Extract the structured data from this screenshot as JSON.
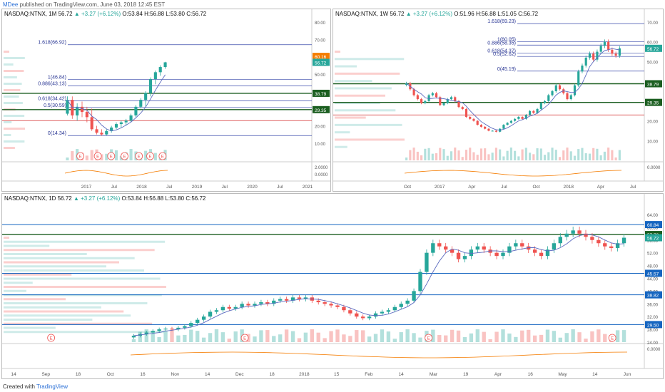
{
  "header": {
    "author": "MDee",
    "published": "published on TradingView.com, June 03, 2018 12:45 EST"
  },
  "footer": {
    "created": "Created with",
    "brand": "TradingView"
  },
  "panels": {
    "monthly": {
      "symbol": "NASDAQ:NTNX, 1M",
      "last": "56.72",
      "chg": "▲ +3.27 (+6.12%)",
      "ohlc": "O:53.84 H:56.88 L:53.80 C:56.72"
    },
    "weekly": {
      "symbol": "NASDAQ:NTNX, 1W",
      "last": "56.72",
      "chg": "▲ +3.27 (+6.12%)",
      "ohlc": "O:51.96 H:56.88 L:51.05 C:56.72"
    },
    "daily": {
      "symbol": "NASDAQ:NTNX, 1D",
      "last": "56.72",
      "chg": "▲ +3.27 (+6.12%)",
      "ohlc": "O:53.84 H:56.88 L:53.80 C:56.72"
    }
  },
  "colors": {
    "up": "#26a69a",
    "down": "#ef5350",
    "fib": "#3949ab",
    "level": "#1b5e20",
    "red_line": "#d32f2f",
    "orange": "#f57c00",
    "blue_line": "#1565c0"
  },
  "chart_data": [
    {
      "type": "candlestick",
      "title": "NASDAQ:NTNX, 1M",
      "ylim": [
        0,
        80
      ],
      "y_ticks": [
        "80.00",
        "70.00",
        "60.00",
        "50.00",
        "40.00",
        "30.00",
        "20.00",
        "10.00"
      ],
      "x_ticks": [
        "2017",
        "Jul",
        "2018",
        "Jul",
        "2019",
        "Jul",
        "2020",
        "Jul",
        "2021"
      ],
      "indicator_ticks": [
        "2.0000",
        "0.0000"
      ],
      "fib_levels": [
        {
          "label": "1.618(66.92)",
          "value": 66.92
        },
        {
          "label": "1(46.84)",
          "value": 46.84
        },
        {
          "label": "0.886(43.13)",
          "value": 43.13
        },
        {
          "label": "0.618(34.42)",
          "value": 34.42
        },
        {
          "label": "0.5(30.59)",
          "value": 30.59
        },
        {
          "label": "0(14.34)",
          "value": 14.34
        }
      ],
      "price_tags": [
        {
          "label": "60.16",
          "value": 60.16,
          "color": "#f57c00"
        },
        {
          "label": "56.72",
          "value": 56.72,
          "color": "#26a69a"
        },
        {
          "label": "38.79",
          "value": 38.79,
          "color": "#1b5e20"
        },
        {
          "label": "29.35",
          "value": 29.35,
          "color": "#1b5e20"
        }
      ],
      "horizontal_levels": [
        38.79,
        29.35,
        23.0
      ],
      "candles": [
        {
          "o": 27,
          "h": 37,
          "l": 26,
          "c": 35
        },
        {
          "o": 35,
          "h": 37,
          "l": 24,
          "c": 26
        },
        {
          "o": 26,
          "h": 33,
          "l": 23,
          "c": 31
        },
        {
          "o": 31,
          "h": 34,
          "l": 25,
          "c": 28
        },
        {
          "o": 28,
          "h": 31,
          "l": 22,
          "c": 25
        },
        {
          "o": 25,
          "h": 30,
          "l": 17,
          "c": 18
        },
        {
          "o": 18,
          "h": 20,
          "l": 15,
          "c": 16
        },
        {
          "o": 16,
          "h": 18,
          "l": 14.3,
          "c": 15
        },
        {
          "o": 15,
          "h": 18,
          "l": 14.5,
          "c": 17
        },
        {
          "o": 17,
          "h": 20,
          "l": 16,
          "c": 19
        },
        {
          "o": 19,
          "h": 22,
          "l": 18,
          "c": 21
        },
        {
          "o": 21,
          "h": 23,
          "l": 19,
          "c": 22
        },
        {
          "o": 22,
          "h": 24,
          "l": 20,
          "c": 23
        },
        {
          "o": 23,
          "h": 27,
          "l": 22,
          "c": 26
        },
        {
          "o": 26,
          "h": 32,
          "l": 25,
          "c": 31
        },
        {
          "o": 31,
          "h": 36,
          "l": 30,
          "c": 35
        },
        {
          "o": 35,
          "h": 40,
          "l": 31,
          "c": 39
        },
        {
          "o": 39,
          "h": 48,
          "l": 37,
          "c": 47
        },
        {
          "o": 47,
          "h": 52,
          "l": 44,
          "c": 51
        },
        {
          "o": 51,
          "h": 55,
          "l": 49,
          "c": 54
        },
        {
          "o": 54,
          "h": 57,
          "l": 53,
          "c": 56.72
        }
      ]
    },
    {
      "type": "candlestick",
      "title": "NASDAQ:NTNX, 1W",
      "ylim": [
        0,
        70
      ],
      "y_ticks": [
        "70.00",
        "60.00",
        "50.00",
        "40.00",
        "30.00",
        "20.00",
        "10.00"
      ],
      "x_ticks": [
        "Oct",
        "2017",
        "Apr",
        "Jul",
        "Oct",
        "2018",
        "Apr",
        "Jul"
      ],
      "indicator_ticks": [
        "0.0000"
      ],
      "fib_levels": [
        {
          "label": "1.618(69.23)",
          "value": 69.23
        },
        {
          "label": "1(60.05)",
          "value": 60.05
        },
        {
          "label": "0.886(58.35)",
          "value": 58.35
        },
        {
          "label": "0.618(54.37)",
          "value": 54.37
        },
        {
          "label": "0.5(52.62)",
          "value": 52.62
        },
        {
          "label": "0(45.19)",
          "value": 45.19
        }
      ],
      "price_tags": [
        {
          "label": "56.72",
          "value": 56.72,
          "color": "#26a69a"
        },
        {
          "label": "38.79",
          "value": 38.79,
          "color": "#1b5e20"
        },
        {
          "label": "29.35",
          "value": 29.35,
          "color": "#1b5e20"
        }
      ],
      "horizontal_levels": [
        38.79,
        29.35,
        23.0
      ],
      "close": [
        39,
        36,
        33,
        31,
        29,
        30,
        33,
        34,
        32,
        28,
        29,
        31,
        32,
        30,
        27,
        26,
        22,
        21,
        20,
        18,
        17,
        16,
        15,
        15,
        14.5,
        16,
        18,
        19,
        20,
        21,
        22,
        21,
        23,
        25,
        24,
        26,
        29,
        30,
        33,
        35,
        38,
        36,
        34,
        31,
        33,
        38,
        45,
        48,
        52,
        54,
        51,
        55,
        58,
        60,
        56,
        54,
        53,
        56.72
      ]
    },
    {
      "type": "candlestick",
      "title": "NASDAQ:NTNX, 1D",
      "ylim": [
        24,
        66
      ],
      "y_ticks": [
        "64.00",
        "60.00",
        "56.00",
        "52.00",
        "48.00",
        "44.00",
        "40.00",
        "36.00",
        "32.00",
        "28.00",
        "24.00"
      ],
      "x_ticks": [
        "14",
        "Sep",
        "18",
        "Oct",
        "16",
        "Nov",
        "14",
        "Dec",
        "18",
        "2018",
        "15",
        "Feb",
        "14",
        "Mar",
        "19",
        "Apr",
        "16",
        "May",
        "14",
        "Jun"
      ],
      "indicator_ticks": [
        "0.0000"
      ],
      "price_tags": [
        {
          "label": "60.84",
          "value": 60.84,
          "color": "#1565c0"
        },
        {
          "label": "57.72",
          "value": 57.72,
          "color": "#1b5e20"
        },
        {
          "label": "56.72",
          "value": 56.72,
          "color": "#26a69a"
        },
        {
          "label": "45.57",
          "value": 45.57,
          "color": "#1565c0"
        },
        {
          "label": "38.82",
          "value": 38.82,
          "color": "#1565c0"
        },
        {
          "label": "29.50",
          "value": 29.5,
          "color": "#1565c0"
        }
      ],
      "horizontal_levels": [
        60.84,
        57.72,
        45.57,
        38.82,
        29.5
      ],
      "close": [
        26,
        26.5,
        27,
        27.5,
        28,
        28.2,
        28,
        28.5,
        29,
        30,
        31,
        32,
        33.5,
        34,
        35,
        34.5,
        35,
        36,
        35.5,
        36,
        36.5,
        36,
        37,
        37.5,
        37,
        38,
        37.5,
        38,
        37,
        36.5,
        36,
        35.5,
        35,
        34,
        33,
        32,
        31.5,
        32,
        33,
        33.5,
        34,
        35,
        36,
        37,
        40,
        46,
        52,
        55,
        54,
        53,
        52,
        50,
        51,
        53,
        54,
        53,
        52,
        51,
        52,
        54,
        55,
        54,
        53,
        52,
        51,
        53,
        55,
        57,
        58,
        59,
        58,
        57,
        56,
        55,
        54,
        53.5,
        55,
        56.72
      ]
    }
  ]
}
